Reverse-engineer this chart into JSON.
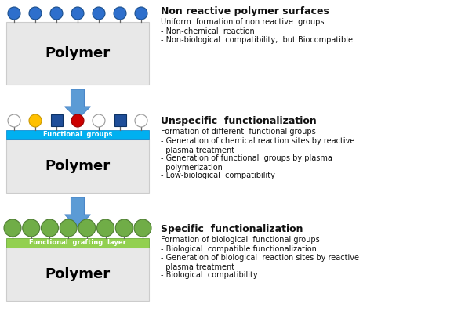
{
  "bg_color": "#ffffff",
  "polymer_box_color": "#e8e8e8",
  "polymer_box_edge": "#cccccc",
  "polymer_text": "Polymer",
  "polymer_text_color": "#000000",
  "arrow_color": "#5b9bd5",
  "arrow_edge": "#4a86c8",
  "blue_circle_color": "#2e6fcc",
  "blue_circle_edge": "#1a4e8c",
  "white_circle_color": "#ffffff",
  "white_circle_edge": "#999999",
  "yellow_circle_color": "#ffc000",
  "yellow_circle_edge": "#cc9900",
  "red_circle_color": "#cc0000",
  "red_circle_edge": "#990000",
  "blue_square_color": "#1f4e99",
  "blue_square_edge": "#0d3366",
  "green_circle_color": "#70ad47",
  "green_circle_edge": "#4e7d32",
  "cyan_bar_color": "#00b0f0",
  "cyan_bar_edge": "#0080cc",
  "green_bar_color": "#92d050",
  "green_bar_edge": "#5a9e28",
  "functional_groups_text": "Functional  groups",
  "functional_grafting_text": "Functional  grafting  layer",
  "section1_title": "Non reactive polymer surfaces",
  "section1_sub": "Uniform  formation of non reactive  groups",
  "section1_bullets": [
    "- Non-chemical  reaction",
    "- Non-biological  compatibility,  but Biocompatible"
  ],
  "section2_title": "Unspecific  functionalization",
  "section2_sub": "Formation of different  functional groups",
  "section2_bullets": [
    "- Generation of chemical reaction sites by reactive\n  plasma treatment",
    "- Generation of functional  groups by plasma\n  polymerization",
    "- Low-biological  compatibility"
  ],
  "section3_title": "Specific  functionalization",
  "section3_sub": "Formation of biological  functional groups",
  "section3_bullets": [
    "- Biological  compatible functionalization",
    "- Generation of biological  reaction sites by reactive\n  plasma treatment",
    "- Biological  compatibility"
  ]
}
